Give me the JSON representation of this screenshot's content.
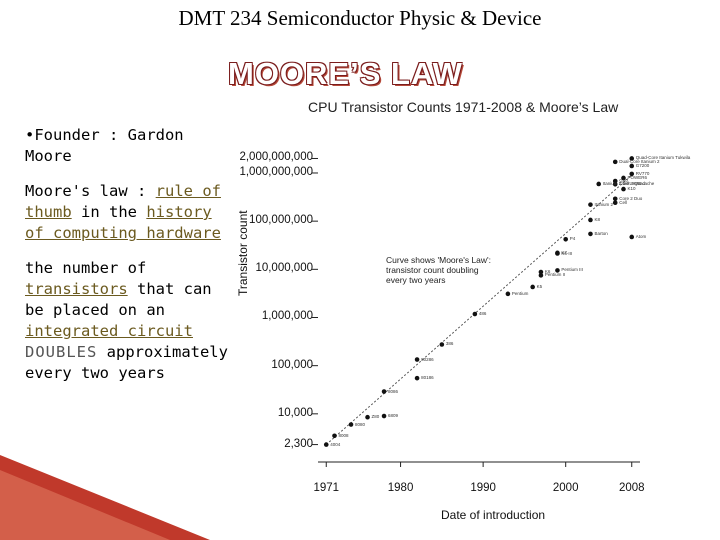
{
  "header": {
    "title": "DMT 234 Semiconductor Physic & Device"
  },
  "slide": {
    "title": "MOORE’S LAW"
  },
  "left_text": {
    "bullet": "•Founder : Gardon Moore",
    "p2_prefix": "Moore's law : ",
    "p2_link1": "rule of thumb",
    "p2_mid": " in the ",
    "p2_link2": "history of computing hardware",
    "p3_prefix": "the number of ",
    "p3_link1": "transistors",
    "p3_mid": " that can be placed on an ",
    "p3_link2": "integrated circuit",
    "p3_doubles": "DOUBLES",
    "p3_suffix": " approximately every two years"
  },
  "chart_data": {
    "type": "scatter",
    "title": "CPU Transistor Counts 1971-2008 & Moore’s Law",
    "xlabel": "Date of introduction",
    "ylabel": "Transistor count",
    "x_ticks": [
      1971,
      1980,
      1990,
      2000,
      2008
    ],
    "y_tick_labels": [
      "2,000,000,000",
      "1,000,000,000",
      "100,000,000",
      "10,000,000",
      "1,000,000",
      "100,000",
      "10,000",
      "2,300"
    ],
    "y_tick_values": [
      2000000000,
      1000000000,
      100000000,
      10000000,
      1000000,
      100000,
      10000,
      2300
    ],
    "xlim": [
      1970,
      2009
    ],
    "ylim": [
      1000,
      3000000000
    ],
    "log_y": true,
    "annotation": "Curve shows 'Moore's Law': transistor count doubling every two years",
    "trend": {
      "x": [
        1971,
        2008
      ],
      "y": [
        2300,
        900000000
      ]
    },
    "points": [
      {
        "label": "4004",
        "x": 1971,
        "y": 2300
      },
      {
        "label": "8008",
        "x": 1972,
        "y": 3500
      },
      {
        "label": "8080",
        "x": 1974,
        "y": 6000
      },
      {
        "label": "Z80",
        "x": 1976,
        "y": 8500
      },
      {
        "label": "8086",
        "x": 1978,
        "y": 29000
      },
      {
        "label": "6809",
        "x": 1978,
        "y": 9000
      },
      {
        "label": "80186",
        "x": 1982,
        "y": 55000
      },
      {
        "label": "80286",
        "x": 1982,
        "y": 134000
      },
      {
        "label": "386",
        "x": 1985,
        "y": 275000
      },
      {
        "label": "486",
        "x": 1989,
        "y": 1180000
      },
      {
        "label": "Pentium",
        "x": 1993,
        "y": 3100000
      },
      {
        "label": "K5",
        "x": 1996,
        "y": 4300000
      },
      {
        "label": "Pentium II",
        "x": 1997,
        "y": 7500000
      },
      {
        "label": "K6",
        "x": 1997,
        "y": 8800000
      },
      {
        "label": "K6-III",
        "x": 1999,
        "y": 21300000
      },
      {
        "label": "Pentium III",
        "x": 1999,
        "y": 9500000
      },
      {
        "label": "K7",
        "x": 1999,
        "y": 22000000
      },
      {
        "label": "P4",
        "x": 2000,
        "y": 42000000
      },
      {
        "label": "K8",
        "x": 2003,
        "y": 105900000
      },
      {
        "label": "Itanium 2",
        "x": 2003,
        "y": 220000000
      },
      {
        "label": "Barton",
        "x": 2003,
        "y": 54300000
      },
      {
        "label": "Atom",
        "x": 2008,
        "y": 47000000
      },
      {
        "label": "Core 2 Duo",
        "x": 2006,
        "y": 291000000
      },
      {
        "label": "Cell",
        "x": 2006,
        "y": 241000000
      },
      {
        "label": "Itanium 2 with 9MB cache",
        "x": 2004,
        "y": 592000000
      },
      {
        "label": "Core 2 Quad",
        "x": 2006,
        "y": 582000000
      },
      {
        "label": "K10",
        "x": 2007,
        "y": 463000000
      },
      {
        "label": "POWER6",
        "x": 2007,
        "y": 789000000
      },
      {
        "label": "G80",
        "x": 2006,
        "y": 681000000
      },
      {
        "label": "G7200",
        "x": 2008,
        "y": 1400000000
      },
      {
        "label": "RV770",
        "x": 2008,
        "y": 956000000
      },
      {
        "label": "Dual-Core Itanium 2",
        "x": 2006,
        "y": 1700000000
      },
      {
        "label": "Quad-Core Itanium Tukwila",
        "x": 2008,
        "y": 2000000000
      }
    ]
  }
}
